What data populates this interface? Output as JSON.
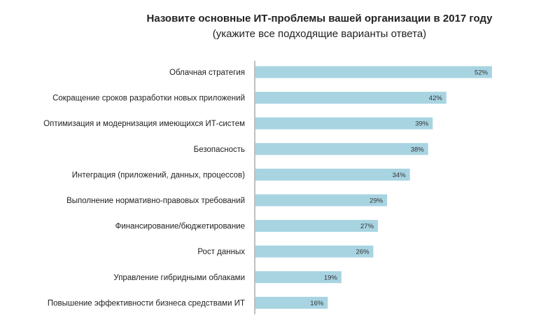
{
  "chart_data": {
    "type": "bar",
    "orientation": "horizontal",
    "title": "Назовите основные ИТ-проблемы вашей организации в 2017 году",
    "subtitle": "(укажите все подходящие варианты ответа)",
    "categories": [
      "Облачная стратегия",
      "Сокращение сроков разработки новых приложений",
      "Оптимизация и модернизация имеющихся ИТ-систем",
      "Безопасность",
      "Интеграция (приложений, данных, процессов)",
      "Выполнение нормативно-правовых требований",
      "Финансирование/бюджетирование",
      "Рост данных",
      "Управление гибридными облаками",
      "Повышение эффективности бизнеса средствами ИТ"
    ],
    "values": [
      52,
      42,
      39,
      38,
      34,
      29,
      27,
      26,
      19,
      16
    ],
    "value_labels": [
      "52%",
      "42%",
      "39%",
      "38%",
      "34%",
      "29%",
      "27%",
      "26%",
      "19%",
      "16%"
    ],
    "xlim": [
      0,
      52
    ],
    "grid": false,
    "legend": false,
    "bar_color": "#a8d4e2",
    "axis_color": "#7f7f7f"
  }
}
